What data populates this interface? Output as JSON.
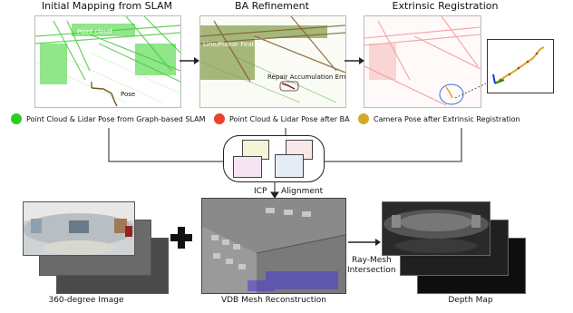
{
  "stages": {
    "initial_mapping": "Initial Mapping from SLAM",
    "ba_refinement": "BA Refinement",
    "extrinsic_registration": "Extrinsic Registration"
  },
  "annotations": {
    "point_cloud": "Point cloud",
    "pose": "Pose",
    "line_planar": "Line/Planar Feature",
    "repair": "Repair Accumulation Errror"
  },
  "legend": [
    {
      "label": "Point Cloud & Lidar Pose from Graph-based SLAM",
      "color": "#2ecc1e"
    },
    {
      "label": "Point Cloud & Lidar Pose after BA",
      "color": "#e8412c"
    },
    {
      "label": "Camera Pose after Extrinsic Registration",
      "color": "#d4a92a"
    }
  ],
  "alignment": {
    "icp": "ICP",
    "alignment": "Alignment"
  },
  "ray_mesh": {
    "line1": "Ray-Mesh",
    "line2": "Intersection"
  },
  "bottom": {
    "image360": "360-degree Image",
    "vdb": "VDB Mesh Reconstruction",
    "depth": "Depth Map"
  },
  "colors": {
    "green": "#2ecc1e",
    "red": "#e8412c",
    "gold": "#d4a92a",
    "brown": "#8a6a2a"
  }
}
